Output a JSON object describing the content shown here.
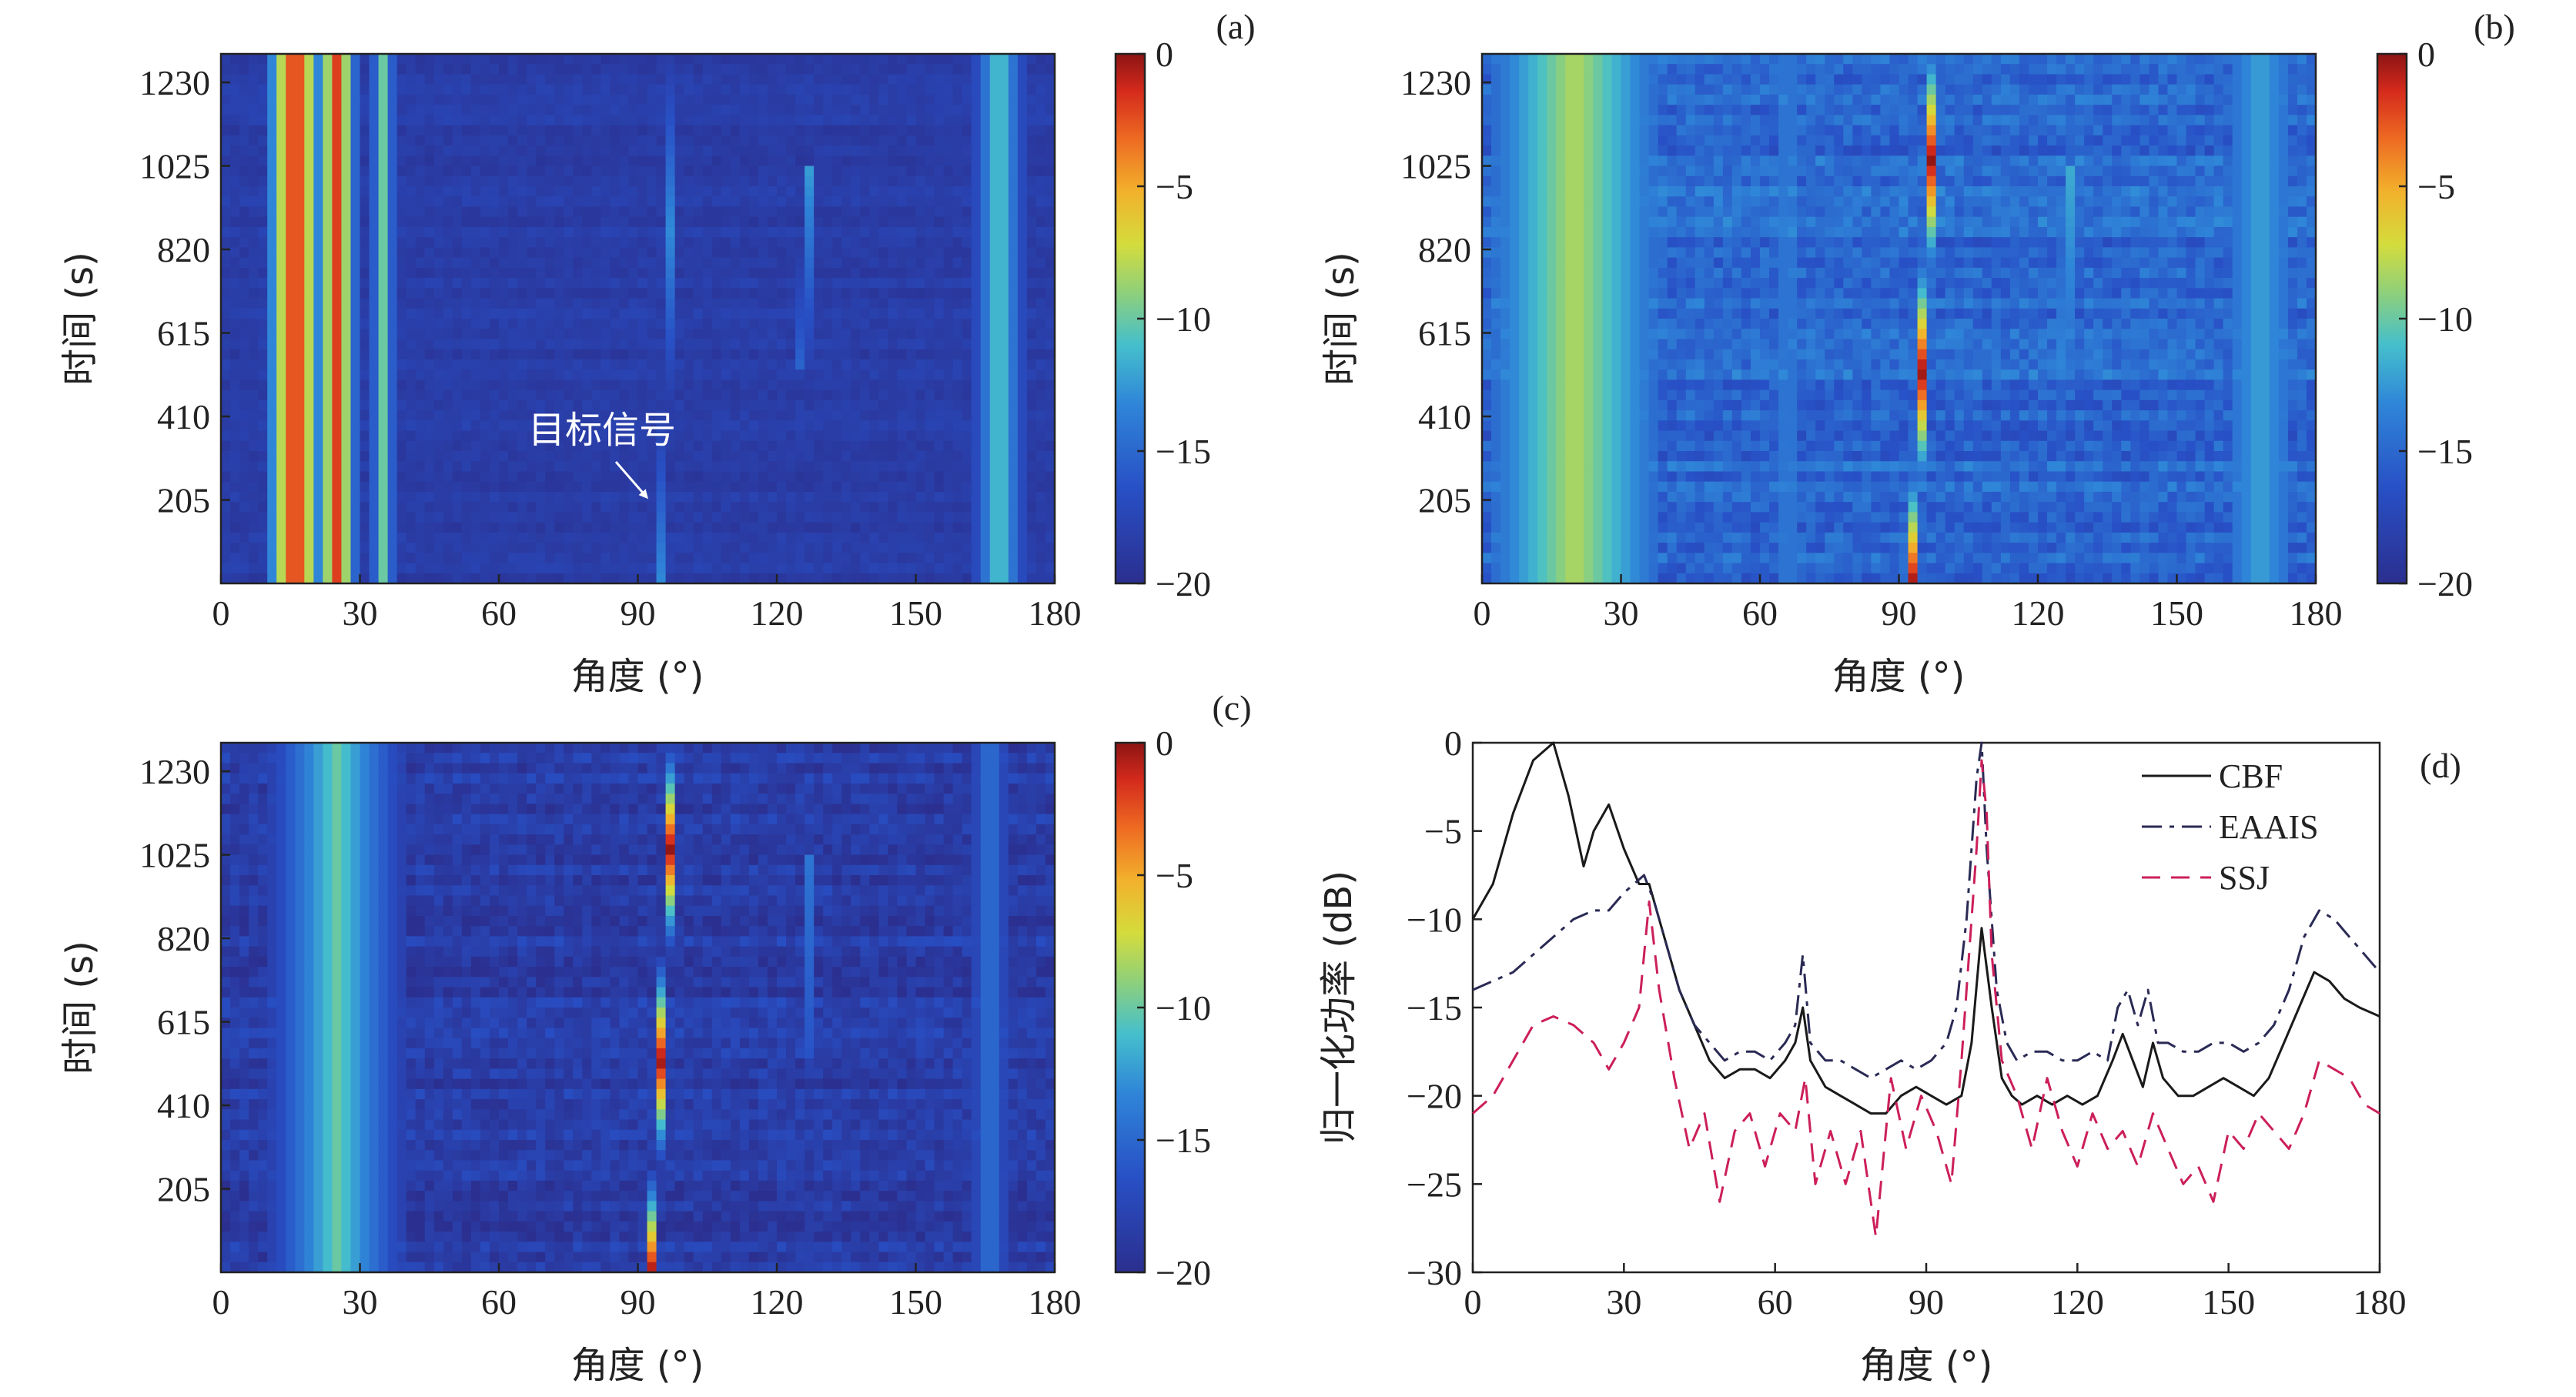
{
  "chart_data": [
    {
      "type": "heatmap",
      "panel_label": "(a)",
      "xlabel": "角度 (°)",
      "ylabel": "时间 (s)",
      "xlim": [
        0,
        180
      ],
      "ylim": [
        0,
        1300
      ],
      "xticks": [
        "0",
        "30",
        "60",
        "90",
        "120",
        "150",
        "180"
      ],
      "yticks": [
        "205",
        "410",
        "615",
        "820",
        "1025",
        "1230"
      ],
      "colorbar": {
        "min": -20,
        "max": 0,
        "ticks": [
          "0",
          "−5",
          "−10",
          "−15",
          "−20"
        ]
      },
      "annotation": {
        "text": "目标信号",
        "x": 97,
        "y": 205
      },
      "features": [
        {
          "angle_start": 16,
          "angle_end": 16,
          "peak_db": 0,
          "width_deg": 14
        },
        {
          "angle_start": 25,
          "angle_end": 25,
          "peak_db": -2,
          "width_deg": 10
        },
        {
          "angle_start": 35,
          "angle_end": 35,
          "peak_db": -10,
          "width_deg": 6
        },
        {
          "angle_start": 66,
          "angle_end": 66,
          "peak_db": -14,
          "width_deg": 2
        },
        {
          "angle_start": 95,
          "angle_end": 98,
          "peak_db": -13,
          "width_deg": 2
        },
        {
          "angle_start": 102,
          "angle_end": 102,
          "peak_db": -16,
          "width_deg": 2
        },
        {
          "angle_start": 125,
          "angle_end": 127,
          "peak_db": -9,
          "width_deg": 2.5,
          "t_start": 520,
          "t_end": 1020
        },
        {
          "angle_start": 168,
          "angle_end": 168,
          "peak_db": -10,
          "width_deg": 12
        }
      ]
    },
    {
      "type": "heatmap",
      "panel_label": "(b)",
      "xlabel": "角度 (°)",
      "ylabel": "时间 (s)",
      "xlim": [
        0,
        180
      ],
      "ylim": [
        0,
        1300
      ],
      "xticks": [
        "0",
        "30",
        "60",
        "90",
        "120",
        "150",
        "180"
      ],
      "yticks": [
        "205",
        "410",
        "615",
        "820",
        "1025",
        "1230"
      ],
      "colorbar": {
        "min": -20,
        "max": 0,
        "ticks": [
          "0",
          "−5",
          "−10",
          "−15",
          "−20"
        ]
      },
      "features": [
        {
          "angle_start": 20,
          "angle_end": 20,
          "peak_db": -8,
          "width_deg": 36
        },
        {
          "angle_start": 66,
          "angle_end": 66,
          "peak_db": -13,
          "width_deg": 3
        },
        {
          "angle_start": 93,
          "angle_end": 98,
          "peak_db": 0,
          "width_deg": 2
        },
        {
          "angle_start": 102,
          "angle_end": 102,
          "peak_db": -15,
          "width_deg": 2
        },
        {
          "angle_start": 125,
          "angle_end": 127,
          "peak_db": -10,
          "width_deg": 2.5,
          "t_start": 520,
          "t_end": 1020
        },
        {
          "angle_start": 130,
          "angle_end": 130,
          "peak_db": -14,
          "width_deg": 2
        },
        {
          "angle_start": 168,
          "angle_end": 168,
          "peak_db": -12,
          "width_deg": 14
        }
      ]
    },
    {
      "type": "heatmap",
      "panel_label": "(c)",
      "xlabel": "角度 (°)",
      "ylabel": "时间 (s)",
      "xlim": [
        0,
        180
      ],
      "ylim": [
        0,
        1300
      ],
      "xticks": [
        "0",
        "30",
        "60",
        "90",
        "120",
        "150",
        "180"
      ],
      "yticks": [
        "205",
        "410",
        "615",
        "820",
        "1025",
        "1230"
      ],
      "colorbar": {
        "min": -20,
        "max": 0,
        "ticks": [
          "0",
          "−5",
          "−10",
          "−15",
          "−20"
        ]
      },
      "features": [
        {
          "angle_start": 25,
          "angle_end": 25,
          "peak_db": -10,
          "width_deg": 30
        },
        {
          "angle_start": 93,
          "angle_end": 98,
          "peak_db": 0,
          "width_deg": 2
        },
        {
          "angle_start": 126,
          "angle_end": 127,
          "peak_db": -13,
          "width_deg": 2,
          "t_start": 520,
          "t_end": 1020
        },
        {
          "angle_start": 166,
          "angle_end": 166,
          "peak_db": -14,
          "width_deg": 8
        }
      ]
    },
    {
      "type": "line",
      "panel_label": "(d)",
      "xlabel": "角度 (°)",
      "ylabel": "归一化功率 (dB)",
      "xlim": [
        0,
        180
      ],
      "ylim": [
        -30,
        0
      ],
      "xticks": [
        "0",
        "30",
        "60",
        "90",
        "120",
        "150",
        "180"
      ],
      "yticks": [
        "0",
        "−5",
        "−10",
        "−15",
        "−20",
        "−25",
        "−30"
      ],
      "legend_position": "top-right",
      "series": [
        {
          "name": "CBF",
          "style": "solid",
          "color": "#1a1a1a",
          "x": [
            0,
            4,
            8,
            12,
            16,
            19,
            22,
            24,
            27,
            30,
            33,
            35,
            38,
            41,
            44,
            47,
            50,
            53,
            56,
            59,
            62,
            64,
            65.5,
            67,
            70,
            73,
            76,
            79,
            82,
            85,
            88,
            91,
            94,
            97,
            99,
            101,
            103,
            105,
            107,
            109,
            112,
            115,
            118,
            121,
            124,
            127,
            129,
            131,
            133,
            135,
            137,
            140,
            143,
            146,
            149,
            152,
            155,
            158,
            161,
            164,
            167,
            170,
            173,
            176,
            180
          ],
          "y": [
            -10,
            -8,
            -4,
            -1,
            0,
            -3,
            -7,
            -5,
            -3.5,
            -6,
            -8,
            -8,
            -11,
            -14,
            -16,
            -18,
            -19,
            -18.5,
            -18.5,
            -19,
            -18,
            -17,
            -15,
            -18,
            -19.5,
            -20,
            -20.5,
            -21,
            -21,
            -20,
            -19.5,
            -20,
            -20.5,
            -20,
            -17,
            -10.5,
            -15,
            -19,
            -20,
            -20.5,
            -20,
            -20.5,
            -20,
            -20.5,
            -20,
            -18,
            -16.5,
            -18,
            -19.5,
            -17,
            -19,
            -20,
            -20,
            -19.5,
            -19,
            -19.5,
            -20,
            -19,
            -17,
            -15,
            -13,
            -13.5,
            -14.5,
            -15,
            -15.5
          ]
        },
        {
          "name": "EAAIS",
          "style": "dashdot",
          "color": "#2a2a55",
          "x": [
            0,
            4,
            8,
            12,
            16,
            20,
            24,
            27,
            30,
            32,
            34,
            36,
            38,
            41,
            44,
            47,
            50,
            53,
            56,
            59,
            62,
            64,
            65.5,
            67,
            70,
            73,
            76,
            79,
            82,
            85,
            88,
            91,
            94,
            96,
            98,
            100,
            101,
            102,
            104,
            106,
            108,
            111,
            114,
            117,
            120,
            123,
            126,
            128,
            130,
            132,
            134,
            136,
            138,
            141,
            144,
            147,
            150,
            153,
            156,
            159,
            162,
            165,
            168,
            171,
            174,
            177,
            180
          ],
          "y": [
            -14,
            -13.5,
            -13,
            -12,
            -11,
            -10,
            -9.5,
            -9.5,
            -8.5,
            -8,
            -7.5,
            -9,
            -11,
            -14,
            -16,
            -17,
            -18,
            -17.5,
            -17.5,
            -18,
            -17,
            -16,
            -12,
            -17,
            -18,
            -18,
            -18.5,
            -19,
            -18.5,
            -18,
            -18.5,
            -18,
            -17,
            -15,
            -10,
            -2,
            0,
            -6,
            -14,
            -17,
            -18,
            -17.5,
            -17.5,
            -18,
            -18,
            -17.5,
            -18,
            -15,
            -14,
            -16,
            -14,
            -17,
            -17,
            -17.5,
            -17.5,
            -17,
            -17,
            -17.5,
            -17,
            -16,
            -14,
            -11,
            -9.5,
            -10,
            -11,
            -12,
            -13
          ]
        },
        {
          "name": "SSJ",
          "style": "dashed",
          "color": "#cc1f5a",
          "x": [
            0,
            4,
            8,
            12,
            16,
            20,
            24,
            27,
            30,
            33,
            35,
            37,
            40,
            43,
            46,
            49,
            52,
            55,
            58,
            61,
            64,
            66,
            68,
            71,
            74,
            77,
            80,
            83,
            86,
            89,
            92,
            95,
            97,
            99,
            100,
            101,
            102,
            103,
            105,
            108,
            111,
            114,
            117,
            120,
            123,
            126,
            129,
            132,
            135,
            138,
            141,
            144,
            147,
            150,
            153,
            156,
            159,
            162,
            165,
            168,
            171,
            174,
            177,
            180
          ],
          "y": [
            -21,
            -20,
            -18,
            -16,
            -15.5,
            -16,
            -17,
            -18.5,
            -17,
            -15,
            -9,
            -14,
            -19,
            -23,
            -21,
            -26,
            -22,
            -21,
            -24,
            -21,
            -22,
            -19,
            -25,
            -22,
            -25,
            -22,
            -28,
            -19,
            -23,
            -20,
            -22,
            -25,
            -18,
            -10,
            -6,
            -1,
            -4,
            -12,
            -18,
            -20,
            -23,
            -19,
            -22,
            -24,
            -21,
            -23,
            -22,
            -24,
            -21,
            -23,
            -25,
            -24,
            -26,
            -22,
            -23,
            -21,
            -22,
            -23,
            -21,
            -18,
            -18.5,
            -19,
            -20.5,
            -21
          ]
        }
      ]
    }
  ]
}
